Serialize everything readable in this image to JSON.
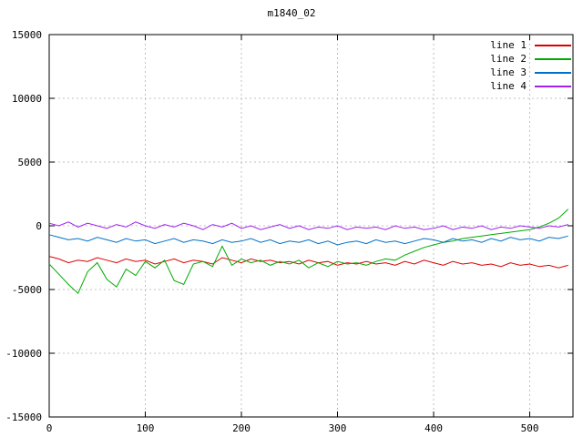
{
  "chart_data": {
    "type": "line",
    "title": "m1840_02",
    "xlabel": "",
    "ylabel": "",
    "xlim": [
      0,
      545
    ],
    "ylim": [
      -15000,
      15000
    ],
    "xticks": [
      0,
      100,
      200,
      300,
      400,
      500
    ],
    "yticks": [
      -15000,
      -10000,
      -5000,
      0,
      5000,
      10000,
      15000
    ],
    "grid": true,
    "legend_position": "top-right-inside",
    "x": [
      0,
      10,
      20,
      30,
      40,
      50,
      60,
      70,
      80,
      90,
      100,
      110,
      120,
      130,
      140,
      150,
      160,
      170,
      180,
      190,
      200,
      210,
      220,
      230,
      240,
      250,
      260,
      270,
      280,
      290,
      300,
      310,
      320,
      330,
      340,
      350,
      360,
      370,
      380,
      390,
      400,
      410,
      420,
      430,
      440,
      450,
      460,
      470,
      480,
      490,
      500,
      510,
      520,
      530,
      540
    ],
    "series": [
      {
        "name": "line 1",
        "color": "#dd0000",
        "values": [
          -2400,
          -2600,
          -2900,
          -2700,
          -2800,
          -2500,
          -2700,
          -2900,
          -2600,
          -2800,
          -2700,
          -3000,
          -2800,
          -2600,
          -2900,
          -2700,
          -2800,
          -3000,
          -2500,
          -2700,
          -2900,
          -2600,
          -2800,
          -2700,
          -2900,
          -2800,
          -3000,
          -2700,
          -2900,
          -2800,
          -3100,
          -2900,
          -3000,
          -2800,
          -3000,
          -2900,
          -3100,
          -2800,
          -3000,
          -2700,
          -2900,
          -3100,
          -2800,
          -3000,
          -2900,
          -3100,
          -3000,
          -3200,
          -2900,
          -3100,
          -3000,
          -3200,
          -3100,
          -3300,
          -3100
        ]
      },
      {
        "name": "line 2",
        "color": "#00aa00",
        "values": [
          -3000,
          -3800,
          -4600,
          -5300,
          -3600,
          -2900,
          -4200,
          -4800,
          -3400,
          -3900,
          -2800,
          -3300,
          -2700,
          -4300,
          -4600,
          -3000,
          -2800,
          -3200,
          -1600,
          -3100,
          -2600,
          -2900,
          -2700,
          -3100,
          -2800,
          -3000,
          -2700,
          -3300,
          -2900,
          -3200,
          -2800,
          -3000,
          -2900,
          -3100,
          -2800,
          -2600,
          -2700,
          -2300,
          -2000,
          -1700,
          -1500,
          -1300,
          -1200,
          -1000,
          -900,
          -800,
          -700,
          -600,
          -500,
          -400,
          -300,
          -100,
          200,
          600,
          1300
        ]
      },
      {
        "name": "line 3",
        "color": "#0070c8",
        "values": [
          -700,
          -900,
          -1100,
          -1000,
          -1200,
          -900,
          -1100,
          -1300,
          -1000,
          -1200,
          -1100,
          -1400,
          -1200,
          -1000,
          -1300,
          -1100,
          -1200,
          -1400,
          -1100,
          -1300,
          -1200,
          -1000,
          -1300,
          -1100,
          -1400,
          -1200,
          -1300,
          -1100,
          -1400,
          -1200,
          -1500,
          -1300,
          -1200,
          -1400,
          -1100,
          -1300,
          -1200,
          -1400,
          -1200,
          -1000,
          -1100,
          -1300,
          -1000,
          -1200,
          -1100,
          -1300,
          -1000,
          -1200,
          -900,
          -1100,
          -1000,
          -1200,
          -900,
          -1000,
          -800
        ]
      },
      {
        "name": "line 4",
        "color": "#a020f0",
        "values": [
          200,
          0,
          300,
          -100,
          200,
          0,
          -200,
          100,
          -100,
          300,
          0,
          -200,
          100,
          -100,
          200,
          0,
          -300,
          100,
          -100,
          200,
          -200,
          0,
          -300,
          -100,
          100,
          -200,
          0,
          -300,
          -100,
          -200,
          0,
          -300,
          -100,
          -200,
          -100,
          -300,
          0,
          -200,
          -100,
          -300,
          -200,
          0,
          -300,
          -100,
          -200,
          0,
          -300,
          -100,
          -200,
          0,
          -100,
          -200,
          0,
          -100,
          100
        ]
      }
    ]
  }
}
